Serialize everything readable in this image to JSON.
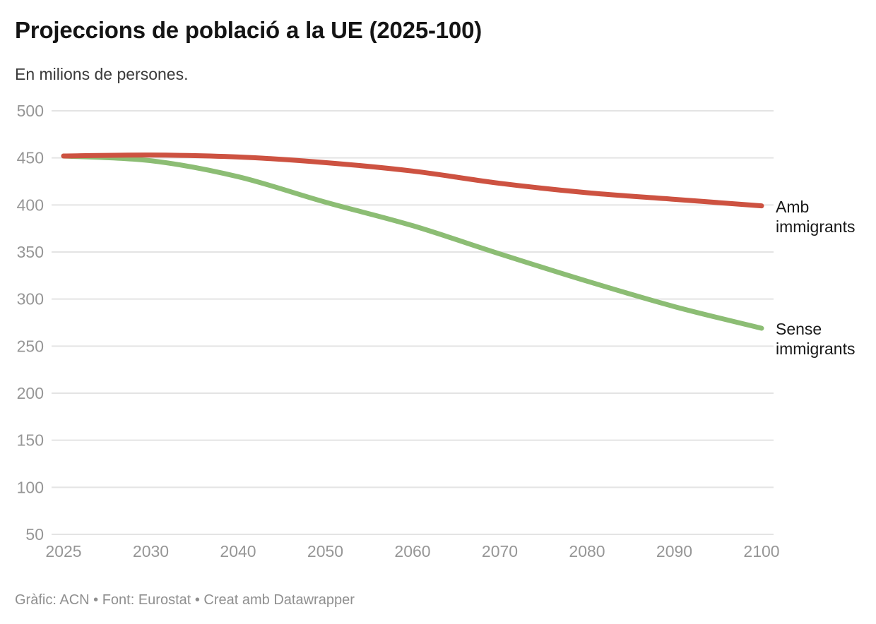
{
  "header": {
    "title": "Projeccions de població a la UE (2025-100)",
    "subtitle": "En milions de persones."
  },
  "footer": {
    "credit": "Gràfic: ACN • Font: Eurostat • Creat amb Datawrapper"
  },
  "colors": {
    "grid": "#e4e4e4",
    "tick_label": "#969696",
    "title": "#141414",
    "subtitle": "#3a3a3a",
    "series_label": "#191919",
    "credit": "#8f8f8f",
    "amb_immigrants": "#cd5241",
    "sense_immigrants": "#8cbd74"
  },
  "chart_data": {
    "type": "line",
    "title": "Projeccions de població a la UE (2025-100)",
    "subtitle": "En milions de persones.",
    "categories": [
      "2025",
      "2030",
      "2040",
      "2050",
      "2060",
      "2070",
      "2080",
      "2090",
      "2100"
    ],
    "x_spacing": "even",
    "series": [
      {
        "name": "Amb immigrants",
        "color": "#cd5241",
        "values": [
          452,
          453,
          451,
          445,
          436,
          423,
          413,
          406,
          399
        ]
      },
      {
        "name": "Sense immigrants",
        "color": "#8cbd74",
        "values": [
          452,
          447,
          430,
          403,
          378,
          348,
          319,
          292,
          269
        ]
      }
    ],
    "ylim": [
      50,
      500
    ],
    "yticks": [
      50,
      100,
      150,
      200,
      250,
      300,
      350,
      400,
      450,
      500
    ],
    "grid": "horizontal",
    "legend_position": "direct-labels-right-of-line-ends",
    "credit": "Gràfic: ACN • Font: Eurostat • Creat amb Datawrapper"
  }
}
